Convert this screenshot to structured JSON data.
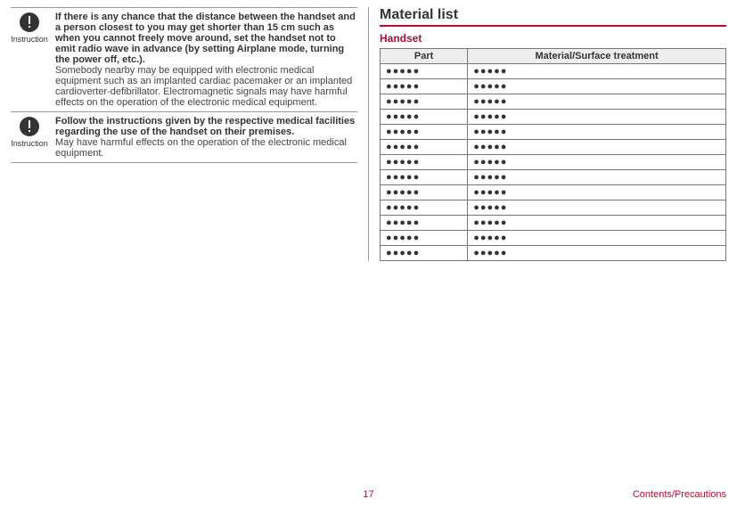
{
  "left": {
    "blocks": [
      {
        "icon_label": "Instruction",
        "bold": "If there is any chance that the distance between the handset and a person closest to you may get shorter than 15 cm such as when you cannot freely move around, set the handset not to emit radio wave in advance (by setting Airplane mode, turning the power off, etc.).",
        "body": "Somebody nearby may be equipped with electronic medical equipment such as an implanted cardiac pacemaker or an implanted cardioverter-defibrillator. Electromagnetic signals may have harmful effects on the operation of the electronic medical equipment."
      },
      {
        "icon_label": "Instruction",
        "bold": "Follow the instructions given by the respective medical facilities regarding the use of the handset on their premises.",
        "body": "May have harmful effects on the operation of the electronic medical equipment."
      }
    ]
  },
  "right": {
    "title": "Material list",
    "subhead": "Handset",
    "columns": [
      "Part",
      "Material/Surface treatment"
    ],
    "dot": "●●●●●",
    "row_count": 13
  },
  "footer": {
    "page": "17",
    "section": "Contents/Precautions"
  }
}
